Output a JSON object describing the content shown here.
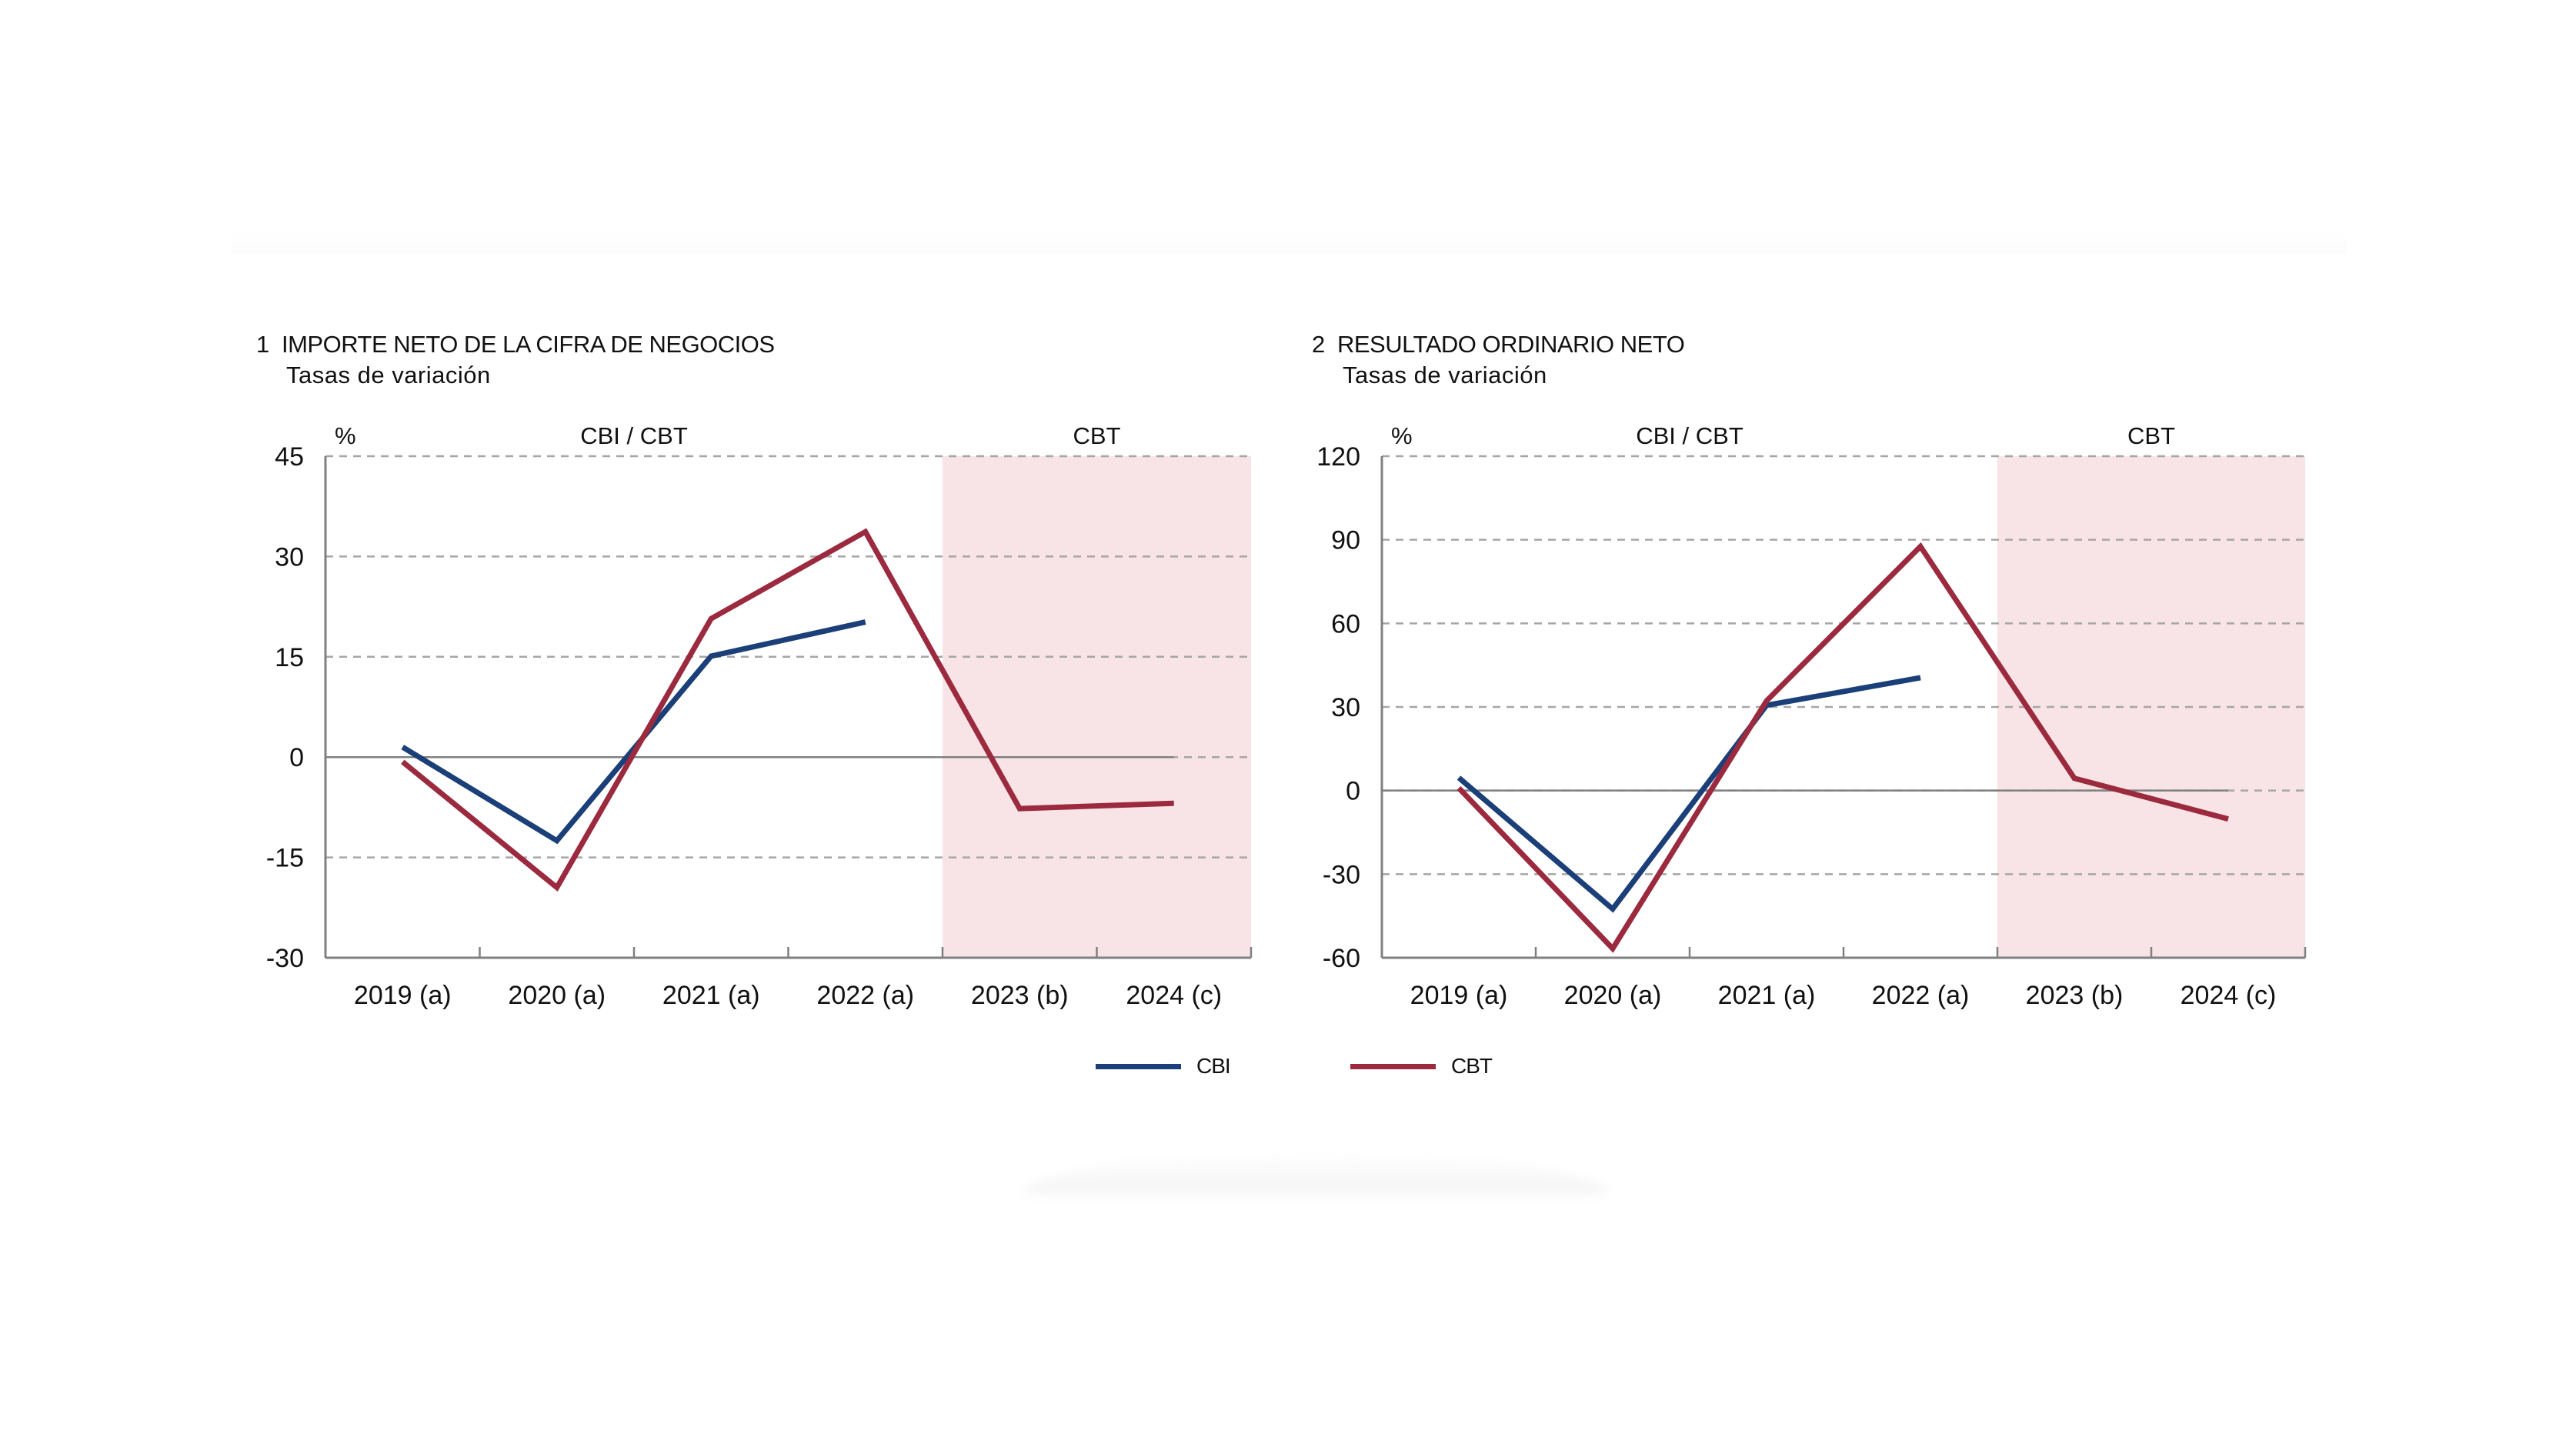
{
  "colors": {
    "CBI": "#1b3f78",
    "CBT": "#9c2a3f",
    "shade": "#f8e4e6",
    "grid": "#a6a6a6",
    "axis": "#808080"
  },
  "legend": [
    {
      "name": "CBI",
      "label": "CBI"
    },
    {
      "name": "CBT",
      "label": "CBT"
    }
  ],
  "chart_data": [
    {
      "type": "line",
      "number": "1",
      "title": "IMPORTE NETO DE LA CIFRA DE NEGOCIOS",
      "subtitle": "Tasas de variación",
      "ylabel": "%",
      "xlabel": "",
      "categories": [
        "2019 (a)",
        "2020 (a)",
        "2021 (a)",
        "2022 (a)",
        "2023 (b)",
        "2024 (c)"
      ],
      "ylim": [
        -30,
        45
      ],
      "yticks": [
        45,
        30,
        15,
        0,
        -15,
        -30
      ],
      "grid": true,
      "region_labels": [
        {
          "label": "CBI / CBT",
          "from": 0,
          "to": 3
        },
        {
          "label": "CBT",
          "from": 4,
          "to": 5,
          "shaded": true
        }
      ],
      "series": [
        {
          "name": "CBI",
          "values": [
            1.5,
            -12.5,
            15.1,
            20.2,
            null,
            null
          ]
        },
        {
          "name": "CBT",
          "values": [
            -0.7,
            -19.5,
            20.7,
            33.7,
            -7.7,
            -6.9
          ]
        }
      ]
    },
    {
      "type": "line",
      "number": "2",
      "title": "RESULTADO ORDINARIO NETO",
      "subtitle": "Tasas de variación",
      "ylabel": "%",
      "xlabel": "",
      "categories": [
        "2019 (a)",
        "2020 (a)",
        "2021 (a)",
        "2022 (a)",
        "2023 (b)",
        "2024 (c)"
      ],
      "ylim": [
        -60,
        120
      ],
      "yticks": [
        120,
        90,
        60,
        30,
        0,
        -30,
        -60
      ],
      "grid": true,
      "region_labels": [
        {
          "label": "CBI / CBT",
          "from": 0,
          "to": 3
        },
        {
          "label": "CBT",
          "from": 4,
          "to": 5,
          "shaded": true
        }
      ],
      "series": [
        {
          "name": "CBI",
          "values": [
            4.6,
            -42.5,
            30.6,
            40.5,
            null,
            null
          ]
        },
        {
          "name": "CBT",
          "values": [
            0.9,
            -56.7,
            32.2,
            87.6,
            4.4,
            -10.2
          ]
        }
      ]
    }
  ]
}
